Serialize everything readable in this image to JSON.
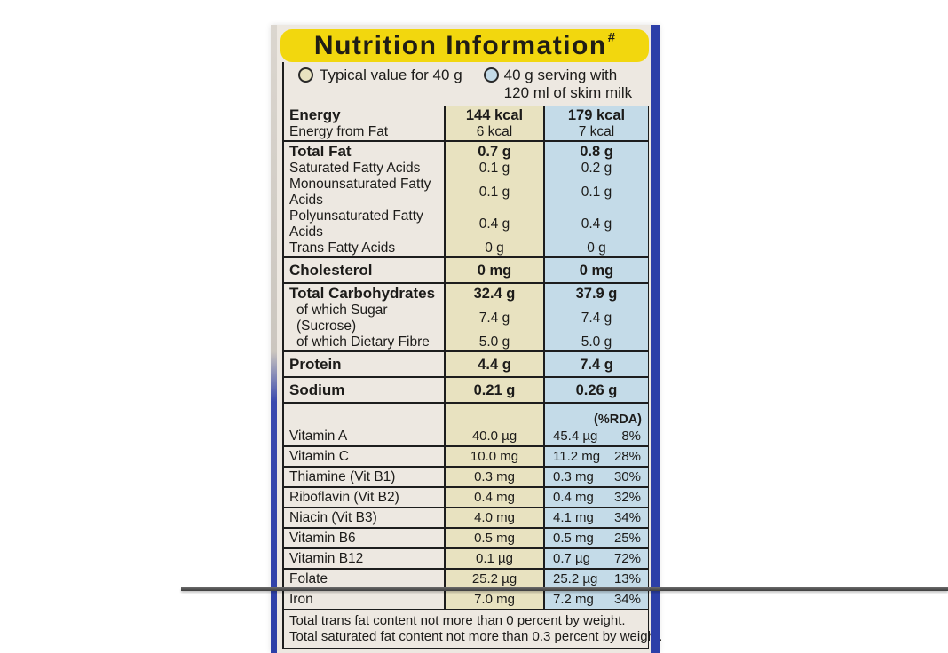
{
  "title": {
    "text": "Nutrition Information",
    "superscript": "#"
  },
  "legend": {
    "typical": {
      "label": "Typical value for 40 g"
    },
    "with_milk": {
      "line1": "40 g serving with",
      "line2": "120 ml of skim milk"
    }
  },
  "colors": {
    "banner_yellow": "#F2D70E",
    "package_edge_blue": "#2C3FA8",
    "typical_column_bg": "#E8E2C0",
    "milk_column_bg": "#C4DBE8",
    "label_bg": "#EDE8E1"
  },
  "table": {
    "rda_header": "(%RDA)",
    "main_rows": [
      {
        "label": "Energy",
        "bold": true,
        "v1": "144 kcal",
        "v2": "179 kcal"
      },
      {
        "label": "Energy from Fat",
        "v1": "6 kcal",
        "v2": "7 kcal",
        "divider": true
      },
      {
        "label": "Total Fat",
        "bold": true,
        "v1": "0.7 g",
        "v2": "0.8 g"
      },
      {
        "label": "Saturated Fatty Acids",
        "v1": "0.1 g",
        "v2": "0.2 g"
      },
      {
        "label": "Monounsaturated Fatty Acids",
        "v1": "0.1 g",
        "v2": "0.1 g"
      },
      {
        "label": "Polyunsaturated Fatty Acids",
        "v1": "0.4 g",
        "v2": "0.4 g"
      },
      {
        "label": "Trans Fatty Acids",
        "v1": "0 g",
        "v2": "0 g",
        "divider": true
      },
      {
        "label": "Cholesterol",
        "bold": true,
        "v1": "0 mg",
        "v2": "0 mg",
        "divider": true,
        "pad": true
      },
      {
        "label": "Total Carbohydrates",
        "bold": true,
        "v1": "32.4 g",
        "v2": "37.9 g"
      },
      {
        "label": "of which Sugar (Sucrose)",
        "v1": "7.4 g",
        "v2": "7.4 g",
        "indent": true
      },
      {
        "label": "of which Dietary Fibre",
        "v1": "5.0 g",
        "v2": "5.0 g",
        "indent": true,
        "divider": true
      },
      {
        "label": "Protein",
        "bold": true,
        "v1": "4.4 g",
        "v2": "7.4 g",
        "divider": true,
        "pad": true
      },
      {
        "label": "Sodium",
        "bold": true,
        "v1": "0.21 g",
        "v2": "0.26 g",
        "divider": true,
        "pad": true
      }
    ],
    "vitamin_rows": [
      {
        "label": "Vitamin A",
        "v1": "40.0 µg",
        "v2": "45.4 µg",
        "rda": "8%"
      },
      {
        "label": "Vitamin C",
        "v1": "10.0 mg",
        "v2": "11.2 mg",
        "rda": "28%"
      },
      {
        "label": "Thiamine (Vit B1)",
        "v1": "0.3 mg",
        "v2": "0.3 mg",
        "rda": "30%"
      },
      {
        "label": "Riboflavin (Vit B2)",
        "v1": "0.4 mg",
        "v2": "0.4 mg",
        "rda": "32%"
      },
      {
        "label": "Niacin (Vit B3)",
        "v1": "4.0 mg",
        "v2": "4.1 mg",
        "rda": "34%"
      },
      {
        "label": "Vitamin B6",
        "v1": "0.5 mg",
        "v2": "0.5 mg",
        "rda": "25%"
      },
      {
        "label": "Vitamin B12",
        "v1": "0.1 µg",
        "v2": "0.7 µg",
        "rda": "72%"
      },
      {
        "label": "Folate",
        "v1": "25.2 µg",
        "v2": "25.2 µg",
        "rda": "13%"
      },
      {
        "label": "Iron",
        "v1": "7.0 mg",
        "v2": "7.2 mg",
        "rda": "34%"
      }
    ]
  },
  "footnotes": [
    "Total trans fat content not more than 0 percent by weight.",
    "Total saturated fat content not more than 0.3 percent by weight."
  ]
}
